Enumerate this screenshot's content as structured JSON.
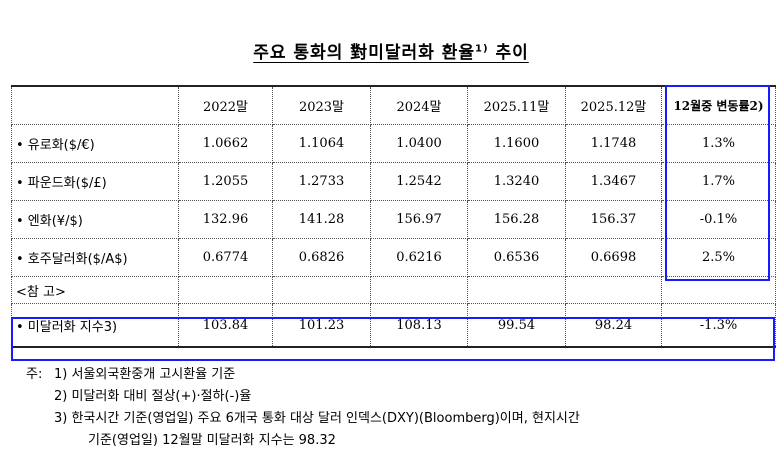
{
  "title": "주요 통화의 對미달러화 환율",
  "title_sup": "1)",
  "title_suffix": "추이",
  "table": {
    "headers": [
      "",
      "2022말",
      "2023말",
      "2024말",
      "2025.11말",
      "2025.12말",
      "12월중 변동률2)"
    ],
    "rows": [
      {
        "label": "• 유로화($/€)",
        "values": [
          "1.0662",
          "1.1064",
          "1.0400",
          "1.1600",
          "1.1748",
          "1.3%"
        ]
      },
      {
        "label": "• 파운드화($/£)",
        "values": [
          "1.2055",
          "1.2733",
          "1.2542",
          "1.3240",
          "1.3467",
          "1.7%"
        ]
      },
      {
        "label": "• 엔화(¥/$)",
        "values": [
          "132.96",
          "141.28",
          "156.97",
          "156.28",
          "156.37",
          "-0.1%"
        ]
      },
      {
        "label": "• 호주달러화($/A$)",
        "values": [
          "0.6774",
          "0.6826",
          "0.6216",
          "0.6536",
          "0.6698",
          "2.5%"
        ]
      }
    ],
    "ref_label": "<참 고>",
    "index_row": {
      "label": "• 미달러화 지수3)",
      "values": [
        "103.84",
        "101.23",
        "108.13",
        "99.54",
        "98.24",
        "-1.3%"
      ]
    }
  },
  "notes": {
    "prefix": "주:",
    "n1": "1) 서울외국환중개 고시환율 기준",
    "n2": "2) 미달러화 대비 절상(+)·절하(-)율",
    "n3": "3) 한국시간 기준(영업일) 주요 6개국 통화 대상 달러 인덱스(DXY)(Bloomberg)이며, 현지시간",
    "n3_cont": "기준(영업일) 12월말 미달러화 지수는 98.32"
  }
}
